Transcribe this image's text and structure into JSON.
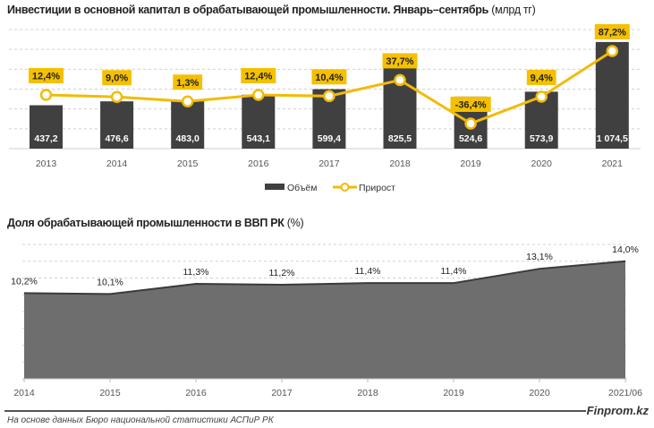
{
  "colors": {
    "bar": "#404040",
    "line": "#f2bb05",
    "label_box": "#f5c000",
    "area": "#6e6e6e",
    "area_stroke": "#3a3a3a",
    "grid": "#d0d0d0"
  },
  "chart_data": [
    {
      "type": "bar+line",
      "title": "Инвестиции в основной капитал в обрабатывающей промышленности. Январь–сентябрь",
      "unit": "(млрд тг)",
      "categories": [
        "2013",
        "2014",
        "2015",
        "2016",
        "2017",
        "2018",
        "2019",
        "2020",
        "2021"
      ],
      "series": [
        {
          "name": "Объём",
          "type": "bar",
          "values": [
            437.2,
            476.6,
            483.0,
            543.1,
            599.4,
            825.5,
            524.6,
            573.9,
            1074.5
          ],
          "labels": [
            "437,2",
            "476,6",
            "483,0",
            "543,1",
            "599,4",
            "825,5",
            "524,6",
            "573,9",
            "1 074,5"
          ]
        },
        {
          "name": "Прирост",
          "type": "line",
          "values": [
            12.4,
            9.0,
            1.3,
            12.4,
            10.4,
            37.7,
            -36.4,
            9.4,
            87.2
          ],
          "labels": [
            "12,4%",
            "9,0%",
            "1,3%",
            "12,4%",
            "10,4%",
            "37,7%",
            "-36,4%",
            "9,4%",
            "87,2%"
          ]
        }
      ],
      "ylim": [
        0,
        1200
      ],
      "grid": true,
      "legend": "bottom"
    },
    {
      "type": "area",
      "title": "Доля обрабатывающей промышленности в ВВП РК",
      "unit": "(%)",
      "categories": [
        "2014",
        "2015",
        "2016",
        "2017",
        "2018",
        "2019",
        "2020",
        "2021/06"
      ],
      "values": [
        10.2,
        10.1,
        11.3,
        11.2,
        11.4,
        11.4,
        13.1,
        14.0
      ],
      "labels": [
        "10,2%",
        "10,1%",
        "11,3%",
        "11,2%",
        "11,4%",
        "11,4%",
        "13,1%",
        "14,0%"
      ],
      "ylim": [
        0,
        16
      ],
      "grid": true
    }
  ],
  "footer": {
    "source": "На основе данных Бюро национальной статистики АСПиР РК",
    "brand": "Finprom.kz"
  }
}
